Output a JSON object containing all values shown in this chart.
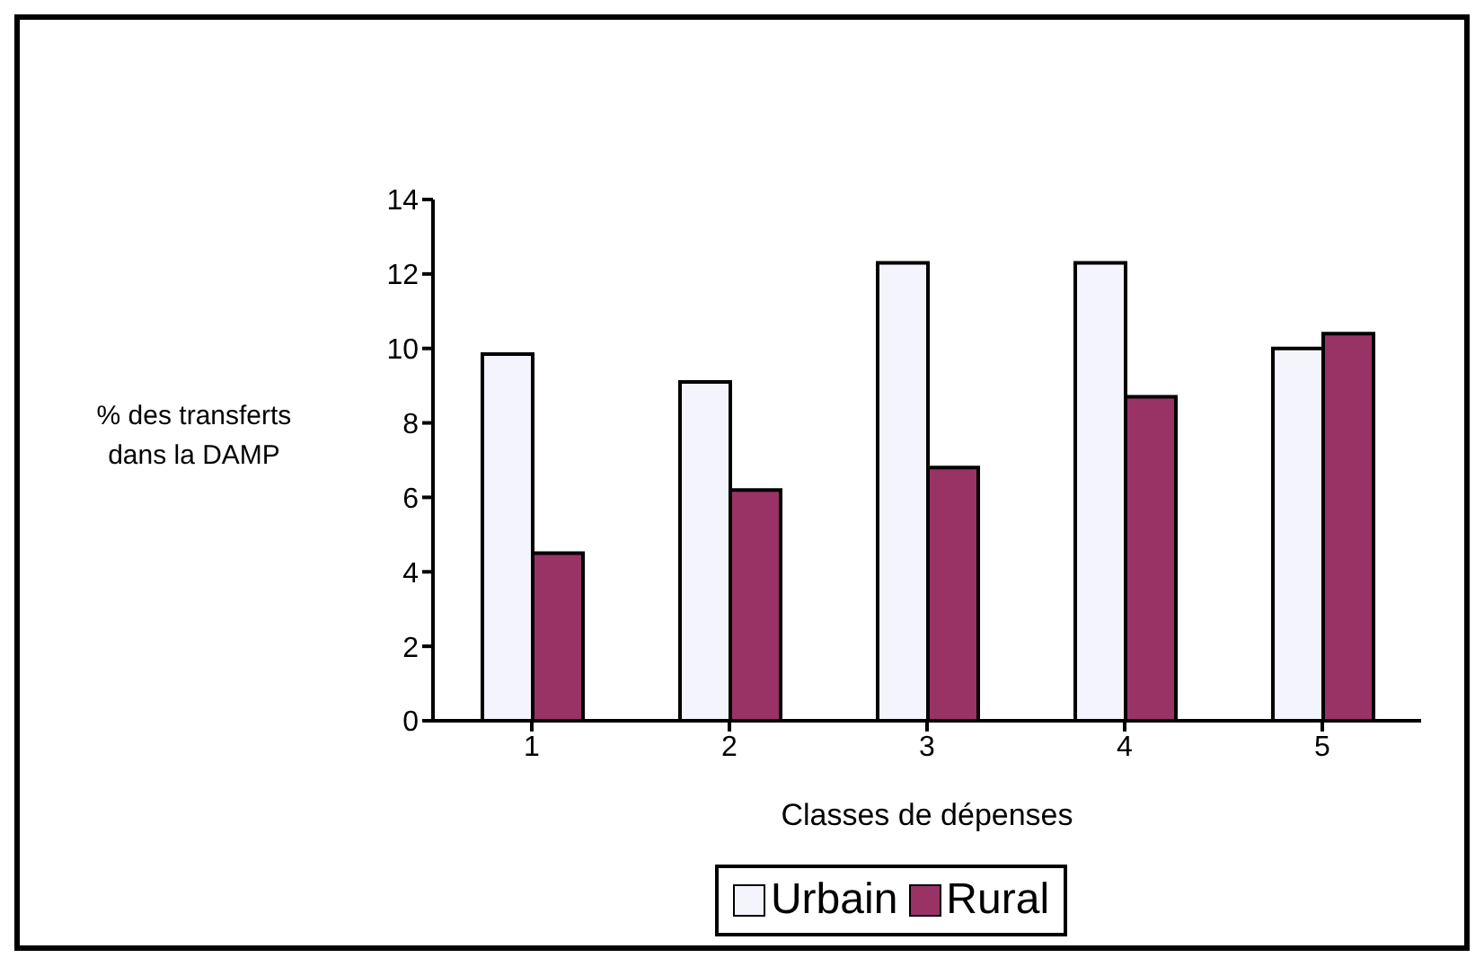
{
  "chart_data": {
    "type": "bar",
    "xlabel": "Classes de dépenses",
    "ylabel": "% des transferts dans la DAMP",
    "categories": [
      "1",
      "2",
      "3",
      "4",
      "5"
    ],
    "series": [
      {
        "name": "Urbain",
        "color": "#f4f4fc",
        "values": [
          9.85,
          9.1,
          12.3,
          12.3,
          10.0
        ]
      },
      {
        "name": "Rural",
        "color": "#993366",
        "values": [
          4.5,
          6.2,
          6.8,
          8.7,
          10.4
        ]
      }
    ],
    "ylim": [
      0,
      14
    ],
    "yticks": [
      0,
      2,
      4,
      6,
      8,
      10,
      12,
      14
    ],
    "grid": false,
    "legend": "bottom"
  }
}
